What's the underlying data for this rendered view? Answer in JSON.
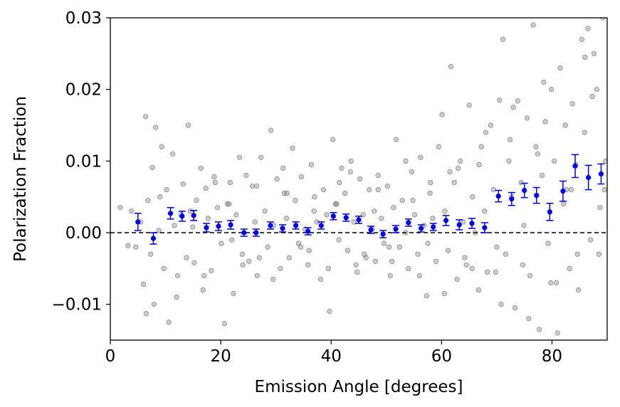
{
  "chart_data": {
    "type": "scatter",
    "xlabel": "Emission Angle [degrees]",
    "ylabel": "Polarization Fraction",
    "xlim": [
      0,
      90
    ],
    "ylim": [
      -0.015,
      0.03
    ],
    "xticks": [
      0,
      20,
      40,
      60,
      80
    ],
    "xtick_labels": [
      "0",
      "20",
      "40",
      "60",
      "80"
    ],
    "yticks": [
      -0.01,
      0.0,
      0.01,
      0.02,
      0.03
    ],
    "ytick_labels": [
      "−0.01",
      "0.00",
      "0.01",
      "0.02",
      "0.03"
    ],
    "grid": false,
    "reference_line": {
      "y": 0.0,
      "style": "dashed",
      "color": "#000000"
    },
    "colors": {
      "individual_points": "#808080",
      "binned_points": "#0000ee"
    },
    "binned_series": {
      "x": [
        5.0,
        7.8,
        10.9,
        13.0,
        15.1,
        17.4,
        19.6,
        21.8,
        24.2,
        26.4,
        29.0,
        31.2,
        33.6,
        35.8,
        38.2,
        40.4,
        42.7,
        45.0,
        47.2,
        49.4,
        51.7,
        54.0,
        56.3,
        58.5,
        60.8,
        63.2,
        65.5,
        67.8,
        70.3,
        72.7,
        75.0,
        77.2,
        79.6,
        82.0,
        84.2,
        86.6,
        88.9
      ],
      "y": [
        0.0015,
        -0.0008,
        0.0027,
        0.0023,
        0.0024,
        0.0007,
        0.0009,
        0.0011,
        0.0,
        0.0,
        0.001,
        0.0006,
        0.001,
        0.0002,
        0.001,
        0.0023,
        0.0021,
        0.0018,
        0.0004,
        -0.0002,
        0.0005,
        0.0014,
        0.0006,
        0.0008,
        0.0017,
        0.0011,
        0.0013,
        0.0007,
        0.0051,
        0.0047,
        0.0059,
        0.0052,
        0.0029,
        0.0058,
        0.0093,
        0.0077,
        0.0082
      ],
      "yerr": [
        0.0012,
        0.0008,
        0.0008,
        0.0007,
        0.0007,
        0.0006,
        0.0006,
        0.0006,
        0.0005,
        0.0005,
        0.0005,
        0.0005,
        0.0005,
        0.0005,
        0.0005,
        0.0005,
        0.0005,
        0.0005,
        0.0005,
        0.0005,
        0.0005,
        0.0005,
        0.0005,
        0.0005,
        0.0007,
        0.0007,
        0.0007,
        0.0007,
        0.0008,
        0.0009,
        0.001,
        0.0011,
        0.0012,
        0.0014,
        0.0016,
        0.0017,
        0.0014
      ]
    },
    "scatter_series": {
      "x": [
        1.8,
        3.2,
        3.8,
        4.6,
        5.5,
        6.0,
        6.4,
        6.8,
        7.3,
        7.6,
        7.9,
        8.2,
        8.8,
        9.3,
        9.7,
        10.2,
        10.6,
        11.3,
        11.6,
        12.2,
        12.8,
        13.2,
        13.8,
        14.1,
        14.9,
        15.2,
        15.6,
        16.4,
        16.8,
        17.3,
        17.7,
        18.3,
        18.8,
        19.4,
        20.1,
        20.7,
        21.2,
        21.7,
        22.3,
        22.8,
        23.4,
        23.9,
        24.6,
        25.1,
        25.7,
        26.2,
        26.6,
        27.3,
        28.0,
        28.5,
        29.1,
        29.6,
        30.2,
        30.8,
        31.3,
        31.9,
        32.4,
        33.0,
        33.5,
        34.1,
        34.6,
        35.3,
        35.8,
        36.4,
        36.9,
        37.4,
        38.1,
        38.6,
        39.2,
        39.7,
        40.3,
        40.8,
        41.4,
        41.9,
        42.5,
        43.0,
        43.6,
        44.1,
        44.7,
        45.2,
        45.8,
        46.3,
        46.9,
        47.4,
        48.0,
        48.5,
        49.1,
        49.6,
        50.2,
        50.7,
        51.3,
        51.8,
        52.4,
        52.9,
        53.5,
        54.0,
        54.6,
        55.1,
        55.7,
        56.2,
        56.8,
        57.3,
        57.9,
        58.4,
        59.0,
        59.5,
        60.1,
        60.6,
        61.2,
        61.7,
        62.3,
        62.8,
        63.4,
        63.9,
        64.5,
        65.0,
        65.6,
        66.1,
        66.7,
        67.2,
        67.8,
        68.3,
        68.9,
        69.4,
        70.0,
        70.5,
        71.1,
        71.6,
        72.2,
        72.7,
        73.3,
        73.8,
        74.4,
        74.9,
        75.5,
        76.0,
        76.6,
        77.1,
        77.7,
        78.2,
        78.8,
        79.3,
        79.9,
        80.4,
        81.0,
        81.5,
        82.1,
        82.6,
        83.2,
        83.7,
        84.3,
        84.8,
        85.4,
        85.9,
        86.5,
        87.0,
        87.6,
        88.1,
        88.7,
        89.2,
        89.7,
        6.5,
        9.0,
        12.0,
        14.5,
        17.0,
        19.0,
        21.5,
        24.0,
        26.5,
        29.5,
        31.5,
        34.5,
        37.0,
        39.5,
        41.0,
        43.5,
        46.0,
        48.5,
        51.0,
        53.5,
        56.0,
        58.0,
        60.5,
        63.0,
        65.5,
        68.0,
        70.8,
        73.0,
        75.8,
        78.5,
        80.8,
        83.5,
        86.0,
        88.5,
        22.0,
        27.0,
        32.0,
        36.0,
        41.5,
        44.5,
        47.8,
        50.5,
        54.8,
        57.5,
        61.5,
        64.2,
        66.8,
        69.8,
        72.4,
        74.7,
        77.4,
        79.8,
        82.4,
        84.6,
        87.3,
        89.5
      ],
      "y": [
        0.0035,
        -0.0018,
        0.003,
        -0.002,
        0.0015,
        -0.0072,
        0.0162,
        0.0045,
        -0.003,
        0.0091,
        -0.01,
        0.0147,
        0.0003,
        0.012,
        -0.005,
        0.006,
        -0.0125,
        0.011,
        0.001,
        -0.006,
        0.0025,
        0.0068,
        -0.0035,
        0.015,
        0.0008,
        -0.0042,
        0.0045,
        0.009,
        -0.008,
        0.0062,
        0.002,
        -0.0053,
        0.0078,
        0.0035,
        -0.0015,
        -0.0127,
        0.004,
        0.007,
        -0.0085,
        0.0025,
        0.0105,
        -0.003,
        0.008,
        -0.004,
        0.0065,
        0.0015,
        -0.006,
        0.0105,
        0.003,
        -0.002,
        0.0143,
        0.001,
        0.0075,
        -0.005,
        0.009,
        0.002,
        -0.0035,
        0.0118,
        0.0045,
        -0.0015,
        0.0078,
        0.0005,
        -0.0045,
        0.0095,
        0.003,
        0.0015,
        -0.0065,
        0.006,
        0.0025,
        -0.011,
        0.013,
        0.004,
        -0.001,
        0.009,
        0.0055,
        -0.0025,
        0.01,
        0.0015,
        -0.0055,
        0.0075,
        0.0025,
        -0.0035,
        0.006,
        0.0005,
        -0.004,
        0.008,
        0.002,
        -0.0015,
        0.0065,
        -0.006,
        0.0035,
        0.013,
        -0.002,
        0.0045,
        0.0,
        -0.005,
        0.0085,
        0.0025,
        -0.003,
        0.0105,
        0.001,
        -0.0088,
        0.0055,
        0.002,
        -0.004,
        0.012,
        0.0165,
        0.003,
        -0.0025,
        0.0232,
        0.007,
        -0.0065,
        0.01,
        0.0015,
        -0.0045,
        0.0178,
        0.005,
        0.0,
        -0.008,
        0.012,
        0.003,
        -0.0055,
        0.015,
        0.006,
        -0.002,
        0.0185,
        0.027,
        -0.003,
        0.01,
        0.005,
        -0.0105,
        0.0184,
        0.007,
        0.001,
        0.016,
        -0.006,
        0.029,
        0.012,
        -0.0135,
        0.008,
        0.0155,
        -0.0015,
        0.02,
        0.01,
        -0.014,
        0.023,
        0.004,
        0.006,
        -0.005,
        0.018,
        0.0095,
        -0.008,
        0.027,
        0.014,
        0.0285,
        -0.001,
        0.025,
        0.02,
        0.0035,
        0.03,
        0.01,
        -0.0113,
        0.005,
        -0.009,
        0.003,
        -0.006,
        0.007,
        0.004,
        -0.0045,
        0.0065,
        -0.0065,
        0.0055,
        -0.002,
        0.005,
        -0.005,
        0.004,
        0.0085,
        -0.003,
        0.006,
        -0.004,
        0.01,
        -0.006,
        0.007,
        -0.0085,
        0.009,
        -0.005,
        0.014,
        -0.01,
        0.0175,
        -0.012,
        0.021,
        -0.007,
        0.006,
        0.0245,
        -0.003,
        -0.001,
        -0.0035,
        0.0055,
        -0.0025,
        0.007,
        -0.0045,
        0.003,
        -0.002,
        0.0045,
        -0.0015,
        0.0085,
        -0.0035,
        0.0095,
        -0.0055,
        0.013,
        -0.0045,
        0.011,
        -0.007,
        0.015,
        -0.003,
        0.019,
        0.006
      ]
    }
  }
}
